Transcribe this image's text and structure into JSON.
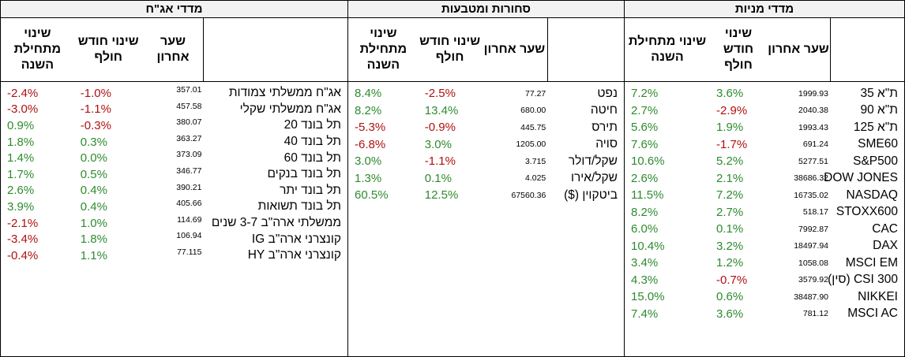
{
  "headers": {
    "name": "",
    "rate": "שער אחרון",
    "month": "שינוי חודש חולף",
    "ytd": "שינוי מתחילת השנה"
  },
  "colors": {
    "positive": "#2e8b2e",
    "negative": "#b01010"
  },
  "stocks": {
    "title": "מדדי מניות",
    "rows": [
      {
        "name": "ת\"א 35",
        "rate": "1999.93",
        "month": "3.6%",
        "ytd": "7.2%"
      },
      {
        "name": "ת\"א 90",
        "rate": "2040.38",
        "month": "-2.9%",
        "ytd": "2.7%"
      },
      {
        "name": "ת\"א 125",
        "rate": "1993.43",
        "month": "1.9%",
        "ytd": "5.6%"
      },
      {
        "name": "SME60",
        "rate": "691.24",
        "month": "-1.7%",
        "ytd": "7.6%"
      },
      {
        "name": "S&P500",
        "rate": "5277.51",
        "month": "5.2%",
        "ytd": "10.6%"
      },
      {
        "name": "DOW JONES",
        "rate": "38686.32",
        "month": "2.1%",
        "ytd": "2.6%"
      },
      {
        "name": "NASDAQ",
        "rate": "16735.02",
        "month": "7.2%",
        "ytd": "11.5%"
      },
      {
        "name": "STOXX600",
        "rate": "518.17",
        "month": "2.7%",
        "ytd": "8.2%"
      },
      {
        "name": "CAC",
        "rate": "7992.87",
        "month": "0.1%",
        "ytd": "6.0%"
      },
      {
        "name": "DAX",
        "rate": "18497.94",
        "month": "3.2%",
        "ytd": "10.4%"
      },
      {
        "name": "MSCI EM",
        "rate": "1058.08",
        "month": "1.2%",
        "ytd": "3.4%"
      },
      {
        "name": "CSI 300 (סין)",
        "rate": "3579.92",
        "month": "-0.7%",
        "ytd": "4.3%"
      },
      {
        "name": "NIKKEI",
        "rate": "38487.90",
        "month": "0.6%",
        "ytd": "15.0%"
      },
      {
        "name": "MSCI AC",
        "rate": "781.12",
        "month": "3.6%",
        "ytd": "7.4%"
      }
    ]
  },
  "commodities": {
    "title": "סחורות ומטבעות",
    "rows": [
      {
        "name": "נפט",
        "rate": "77.27",
        "month": "-2.5%",
        "ytd": "8.4%"
      },
      {
        "name": "חיטה",
        "rate": "680.00",
        "month": "13.4%",
        "ytd": "8.2%"
      },
      {
        "name": "תירס",
        "rate": "445.75",
        "month": "-0.9%",
        "ytd": "-5.3%"
      },
      {
        "name": "סויה",
        "rate": "1205.00",
        "month": "3.0%",
        "ytd": "-6.8%"
      },
      {
        "name": "שקל/דולר",
        "rate": "3.715",
        "month": "-1.1%",
        "ytd": "3.0%"
      },
      {
        "name": "שקל/אירו",
        "rate": "4.025",
        "month": "0.1%",
        "ytd": "1.3%"
      },
      {
        "name": "ביטקוין ($)",
        "rate": "67560.36",
        "month": "12.5%",
        "ytd": "60.5%"
      }
    ]
  },
  "bonds": {
    "title": "מדדי אג\"ח",
    "rows": [
      {
        "name": "אג\"ח ממשלתי צמודות",
        "rate": "357.01",
        "month": "-1.0%",
        "ytd": "-2.4%"
      },
      {
        "name": "אג\"ח ממשלתי שקלי",
        "rate": "457.58",
        "month": "-1.1%",
        "ytd": "-3.0%"
      },
      {
        "name": "תל בונד 20",
        "rate": "380.07",
        "month": "-0.3%",
        "ytd": "0.9%"
      },
      {
        "name": "תל בונד 40",
        "rate": "363.27",
        "month": "0.3%",
        "ytd": "1.8%"
      },
      {
        "name": "תל בונד 60",
        "rate": "373.09",
        "month": "0.0%",
        "ytd": "1.4%"
      },
      {
        "name": "תל בונד בנקים",
        "rate": "346.77",
        "month": "0.5%",
        "ytd": "1.7%"
      },
      {
        "name": "תל בונד יתר",
        "rate": "390.21",
        "month": "0.4%",
        "ytd": "2.6%"
      },
      {
        "name": "תל בונד תשואות",
        "rate": "405.66",
        "month": "0.4%",
        "ytd": "3.9%"
      },
      {
        "name": "ממשלתי ארה\"ב 3-7 שנים",
        "rate": "114.69",
        "month": "1.0%",
        "ytd": "-2.1%"
      },
      {
        "name": "קונצרני ארה\"ב IG",
        "rate": "106.94",
        "month": "1.8%",
        "ytd": "-3.4%"
      },
      {
        "name": "קונצרני ארה\"ב HY",
        "rate": "77.115",
        "month": "1.1%",
        "ytd": "-0.4%"
      }
    ]
  }
}
